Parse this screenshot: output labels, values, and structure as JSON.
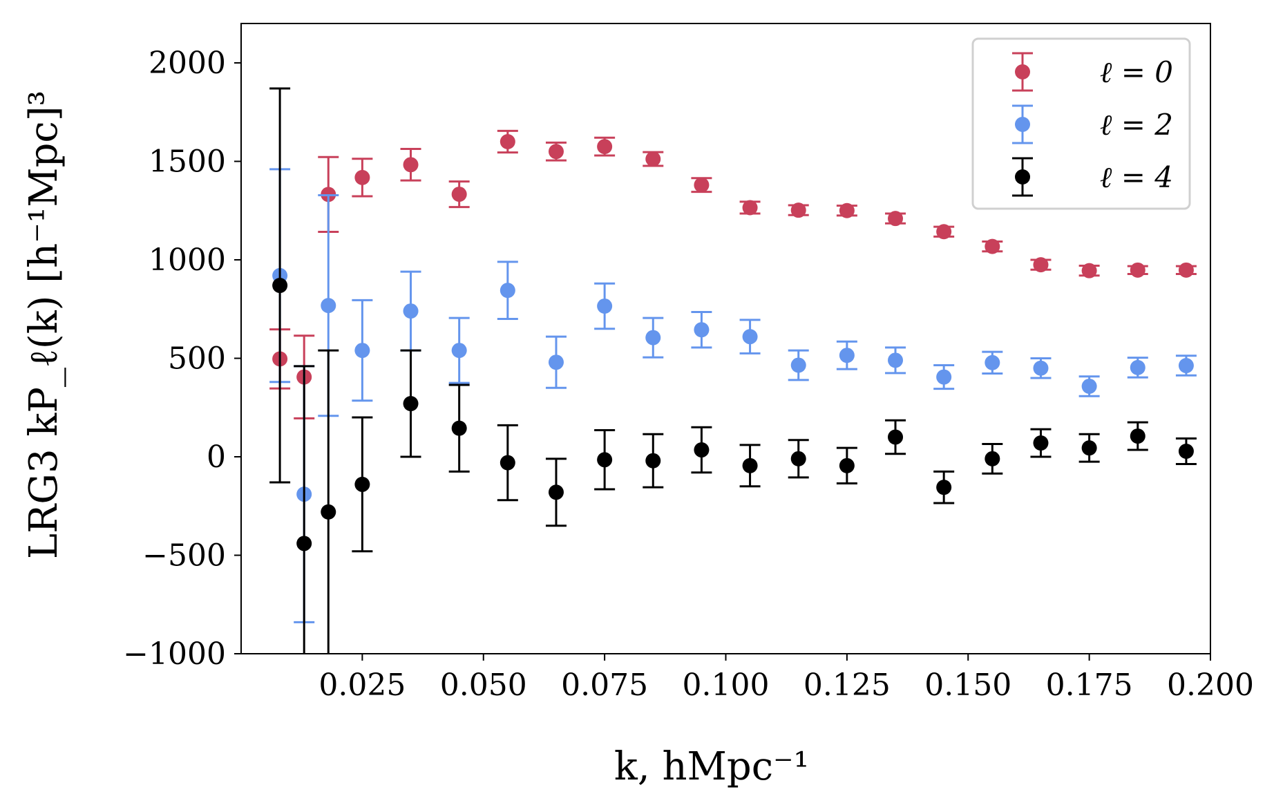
{
  "chart_data": {
    "type": "scatter",
    "title": "",
    "xlabel": "k, hMpc⁻¹",
    "ylabel": "LRG3 kP_ℓ(k) [h⁻¹Mpc]³",
    "xlim": [
      0.0,
      0.2
    ],
    "ylim": [
      -1000,
      2200
    ],
    "xticks": [
      0.025,
      0.05,
      0.075,
      0.1,
      0.125,
      0.15,
      0.175,
      0.2
    ],
    "xtick_labels": [
      "0.025",
      "0.050",
      "0.075",
      "0.100",
      "0.125",
      "0.150",
      "0.175",
      "0.200"
    ],
    "yticks": [
      -1000,
      -500,
      0,
      500,
      1000,
      1500,
      2000
    ],
    "ytick_labels": [
      "−1000",
      "−500",
      "0",
      "500",
      "1000",
      "1500",
      "2000"
    ],
    "grid": false,
    "legend_position": "top-right",
    "x": [
      0.008,
      0.013,
      0.018,
      0.025,
      0.035,
      0.045,
      0.055,
      0.065,
      0.075,
      0.085,
      0.095,
      0.105,
      0.115,
      0.125,
      0.135,
      0.145,
      0.155,
      0.165,
      0.175,
      0.185,
      0.195
    ],
    "series": [
      {
        "name": "ℓ = 0",
        "color": "#c8405a",
        "y": [
          497,
          405,
          1332,
          1418,
          1483,
          1333,
          1600,
          1550,
          1575,
          1512,
          1380,
          1265,
          1252,
          1250,
          1210,
          1143,
          1068,
          975,
          945,
          948,
          948
        ],
        "err": [
          150,
          210,
          190,
          95,
          80,
          65,
          55,
          45,
          45,
          35,
          35,
          30,
          25,
          25,
          25,
          25,
          25,
          25,
          25,
          20,
          20
        ]
      },
      {
        "name": "ℓ = 2",
        "color": "#6495ed",
        "y": [
          920,
          -190,
          768,
          540,
          740,
          540,
          845,
          480,
          765,
          605,
          645,
          610,
          465,
          515,
          490,
          405,
          478,
          450,
          358,
          453,
          463
        ],
        "err": [
          540,
          650,
          560,
          255,
          200,
          165,
          145,
          130,
          115,
          100,
          90,
          85,
          75,
          70,
          65,
          60,
          55,
          50,
          50,
          50,
          50
        ]
      },
      {
        "name": "ℓ = 4",
        "color": "#000000",
        "y": [
          870,
          -440,
          -280,
          -140,
          270,
          145,
          -30,
          -180,
          -15,
          -20,
          35,
          -45,
          -10,
          -45,
          100,
          -155,
          -10,
          70,
          45,
          105,
          28
        ]
      }
    ],
    "series_err_l4": [
      1000,
      900,
      820,
      340,
      270,
      220,
      190,
      170,
      150,
      135,
      115,
      105,
      95,
      90,
      85,
      80,
      75,
      70,
      70,
      70,
      65
    ]
  }
}
